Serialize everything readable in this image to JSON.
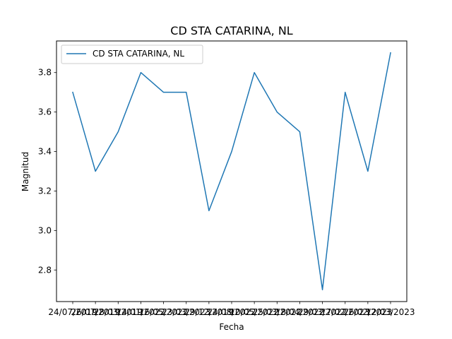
{
  "chart_data": {
    "type": "line",
    "title": "CD STA CATARINA, NL",
    "xlabel": "Fecha",
    "ylabel": "Magnitud",
    "x": [
      "24/07/2019",
      "26/07/2019",
      "28/03/2019",
      "14/01/2022",
      "16/05/2022",
      "23/03/2023",
      "29/12/2019",
      "24/08/2022",
      "10/05/2022",
      "25/03/2022",
      "18/04/2022",
      "29/03/2022",
      "17/02/2023",
      "26/02/2023",
      "12/03/2023"
    ],
    "series": [
      {
        "name": "CD STA CATARINA, NL",
        "color": "#1f77b4",
        "values": [
          3.7,
          3.3,
          3.5,
          3.8,
          3.7,
          3.7,
          3.1,
          3.4,
          3.8,
          3.6,
          3.5,
          2.7,
          3.7,
          3.3,
          3.9
        ]
      }
    ],
    "ylim": [
      2.64,
      3.96
    ],
    "yticks": [
      "2.8",
      "3.0",
      "3.2",
      "3.4",
      "3.6",
      "3.8"
    ],
    "grid": false,
    "legend": "upper left"
  }
}
